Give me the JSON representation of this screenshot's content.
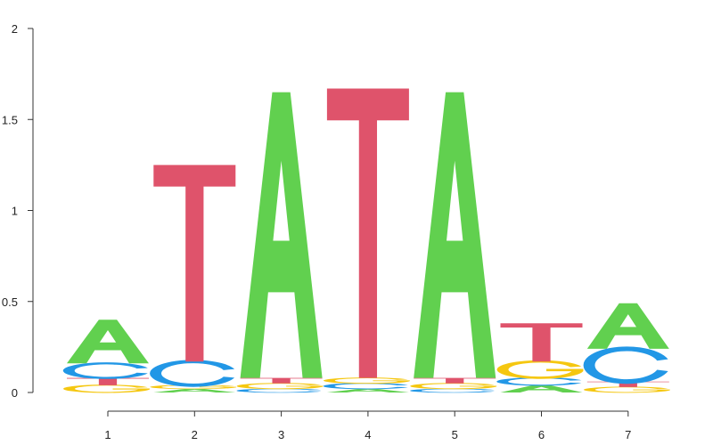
{
  "chart_data": {
    "type": "sequence-logo",
    "title": "",
    "xlabel": "",
    "ylabel": "",
    "ylim": [
      0,
      2
    ],
    "yticks": [
      0,
      0.5,
      1,
      1.5,
      2
    ],
    "ytick_labels": [
      "0",
      "0.5",
      "1",
      "1.5",
      "2"
    ],
    "xticks": [
      1,
      2,
      3,
      4,
      5,
      6,
      7
    ],
    "xtick_labels": [
      "1",
      "2",
      "3",
      "4",
      "5",
      "6",
      "7"
    ],
    "colors": {
      "A": "#61D04F",
      "C": "#2297E6",
      "G": "#F5C710",
      "T": "#DF536B"
    },
    "positions": [
      {
        "position": 1,
        "letters": [
          {
            "letter": "G",
            "height": 0.04
          },
          {
            "letter": "T",
            "height": 0.04
          },
          {
            "letter": "C",
            "height": 0.08
          },
          {
            "letter": "A",
            "height": 0.24
          }
        ]
      },
      {
        "position": 2,
        "letters": [
          {
            "letter": "A",
            "height": 0.02
          },
          {
            "letter": "G",
            "height": 0.02
          },
          {
            "letter": "C",
            "height": 0.13
          },
          {
            "letter": "T",
            "height": 1.08
          }
        ]
      },
      {
        "position": 3,
        "letters": [
          {
            "letter": "C",
            "height": 0.02
          },
          {
            "letter": "G",
            "height": 0.03
          },
          {
            "letter": "T",
            "height": 0.03
          },
          {
            "letter": "A",
            "height": 1.57
          }
        ]
      },
      {
        "position": 4,
        "letters": [
          {
            "letter": "A",
            "height": 0.02
          },
          {
            "letter": "C",
            "height": 0.03
          },
          {
            "letter": "G",
            "height": 0.03
          },
          {
            "letter": "T",
            "height": 1.59
          }
        ]
      },
      {
        "position": 5,
        "letters": [
          {
            "letter": "C",
            "height": 0.02
          },
          {
            "letter": "G",
            "height": 0.03
          },
          {
            "letter": "T",
            "height": 0.03
          },
          {
            "letter": "A",
            "height": 1.57
          }
        ]
      },
      {
        "position": 6,
        "letters": [
          {
            "letter": "A",
            "height": 0.04
          },
          {
            "letter": "C",
            "height": 0.04
          },
          {
            "letter": "G",
            "height": 0.09
          },
          {
            "letter": "T",
            "height": 0.21
          }
        ]
      },
      {
        "position": 7,
        "letters": [
          {
            "letter": "G",
            "height": 0.03
          },
          {
            "letter": "T",
            "height": 0.03
          },
          {
            "letter": "C",
            "height": 0.18
          },
          {
            "letter": "A",
            "height": 0.25
          }
        ]
      }
    ]
  }
}
